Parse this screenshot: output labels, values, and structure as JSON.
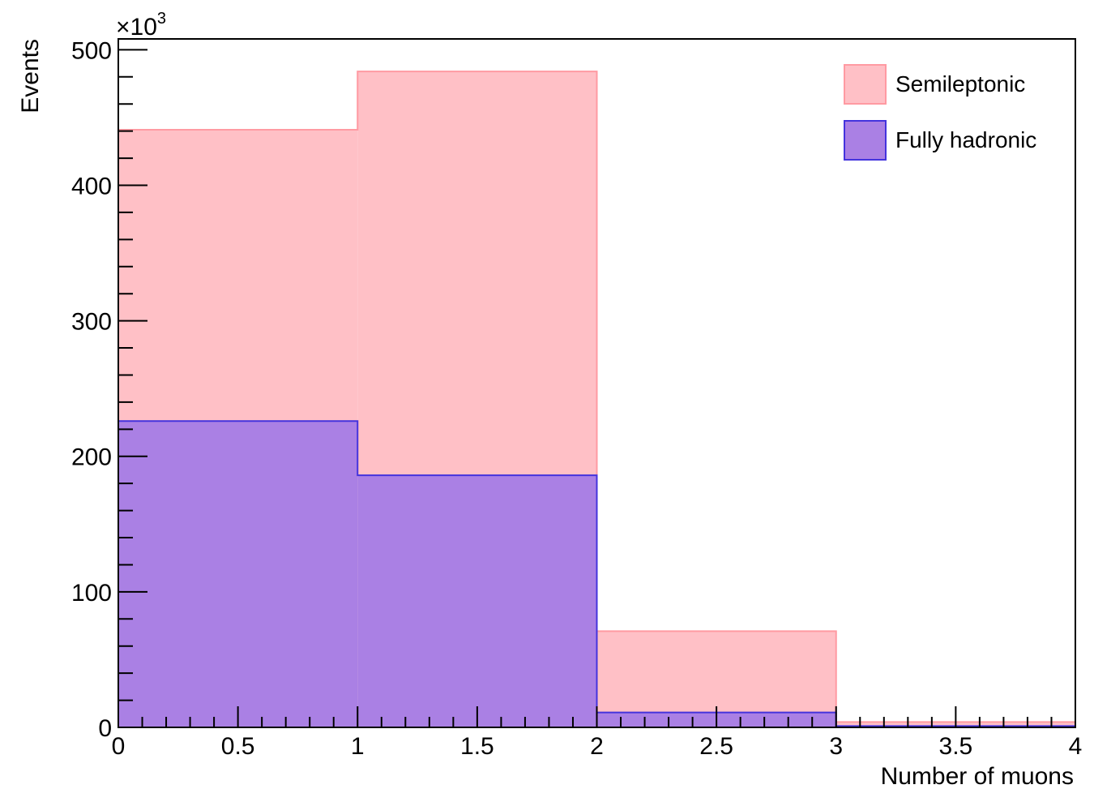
{
  "chart_data": {
    "type": "bar",
    "histogram": true,
    "overlay": true,
    "bin_edges": [
      0,
      1,
      2,
      3,
      4
    ],
    "series": [
      {
        "name": "Semileptonic",
        "values": [
          441,
          484,
          71,
          4
        ],
        "fill": "#ffc0c6",
        "line": "#ff9aa2"
      },
      {
        "name": "Fully hadronic",
        "values": [
          226,
          186,
          11,
          1
        ],
        "fill": "#aa80e4",
        "line": "#4433dd"
      }
    ],
    "xlabel": "Number of muons",
    "ylabel": "Events",
    "y_multiplier": "×10",
    "y_multiplier_exp": "3",
    "xlim": [
      0,
      4
    ],
    "ylim": [
      0,
      508
    ],
    "x_ticks": [
      "0",
      "0.5",
      "1",
      "1.5",
      "2",
      "2.5",
      "3",
      "3.5",
      "4"
    ],
    "x_tick_values": [
      0,
      0.5,
      1,
      1.5,
      2,
      2.5,
      3,
      3.5,
      4
    ],
    "y_ticks": [
      "0",
      "100",
      "200",
      "300",
      "400",
      "500"
    ],
    "y_tick_values": [
      0,
      100,
      200,
      300,
      400,
      500
    ],
    "legend_position": "top-right",
    "grid": false
  }
}
